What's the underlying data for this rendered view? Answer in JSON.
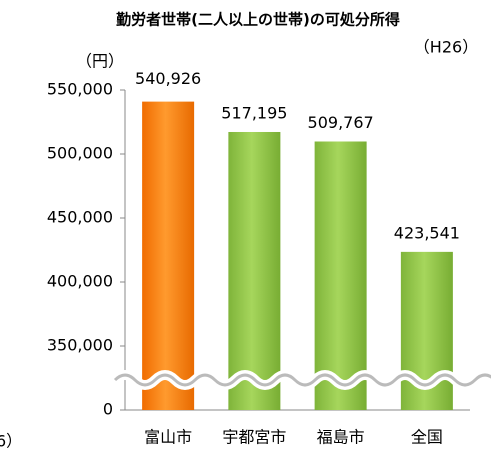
{
  "chart_data": {
    "type": "bar",
    "title": "勤労者世帯(二人以上の世帯)の可処分所得",
    "y_unit": "（円）",
    "period": "（H26）",
    "note": "6）",
    "categories": [
      "富山市",
      "宇都宮市",
      "福島市",
      "全国"
    ],
    "values": [
      540926,
      517195,
      509767,
      423541
    ],
    "value_labels": [
      "540,926",
      "517,195",
      "509,767",
      "423,541"
    ],
    "colors": [
      "#f57f0f",
      "#92c84a",
      "#92c84a",
      "#92c84a"
    ],
    "ylim": [
      0,
      550000
    ],
    "yticks": [
      0,
      {
        "value": 350000,
        "label": "350,000"
      },
      {
        "value": 400000,
        "label": "400,000"
      },
      {
        "value": 450000,
        "label": "450,000"
      },
      {
        "value": 500000,
        "label": "500,000"
      },
      {
        "value": 550000,
        "label": "550,000"
      }
    ],
    "axis_break": true
  }
}
